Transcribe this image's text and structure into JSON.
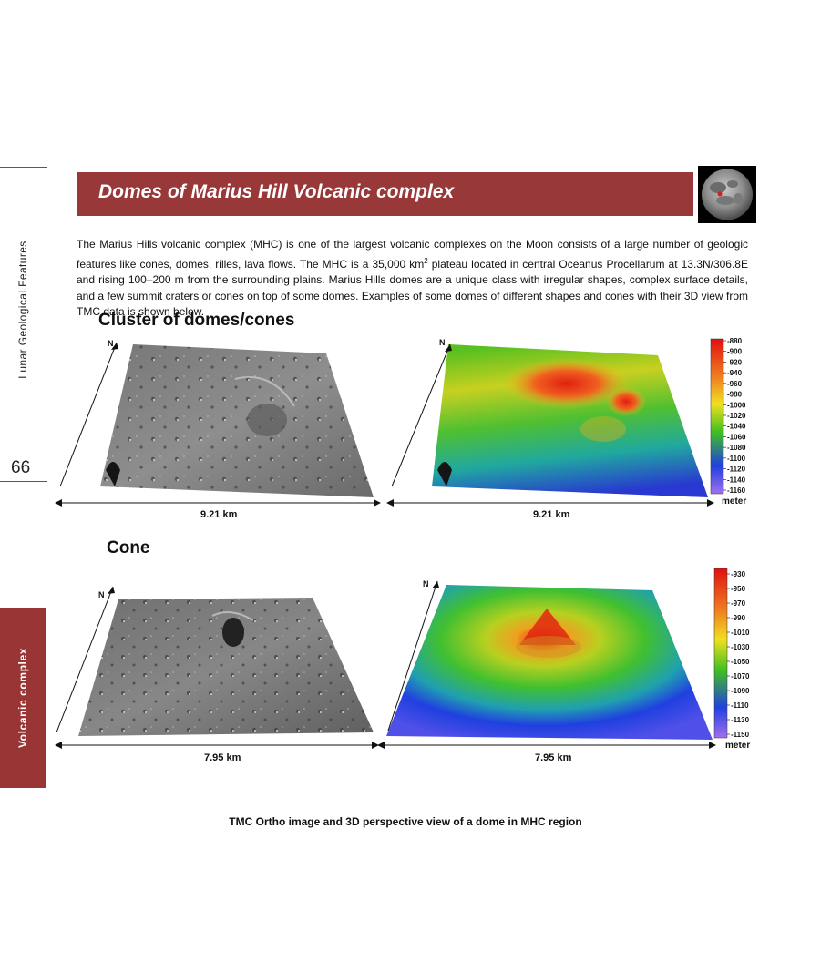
{
  "side": {
    "chapter": "Lunar Geological Features",
    "page_number": "66",
    "section_tab": "Volcanic complex"
  },
  "header": {
    "title": "Domes of Marius Hill Volcanic complex",
    "thumbnail_icon": "moon-globe-icon"
  },
  "intro": {
    "part1": "The Marius Hills volcanic complex (MHC) is one of the largest volcanic complexes on the Moon consists of a large number of geologic features like cones, domes, rilles, lava flows. The MHC is a 35,000 km",
    "sup": "2",
    "part2": " plateau located in central Oceanus Procellarum at 13.3N/306.8E and rising 100–200 m from the surrounding plains. Marius Hills domes are a unique class with irregular shapes, complex surface details, and a few summit craters or cones on top of some domes. Examples of some domes of different shapes and cones with their 3D view from TMC data is shown below."
  },
  "figures": {
    "cluster": {
      "title": "Cluster of domes/cones",
      "north": "N",
      "scale_left": "9.21 km",
      "scale_right": "9.21 km",
      "legend_unit": "meter",
      "legend_ticks": [
        "-880",
        "-900",
        "-920",
        "-940",
        "-960",
        "-980",
        "-1000",
        "-1020",
        "-1040",
        "-1060",
        "-1080",
        "-1100",
        "-1120",
        "-1140",
        "-1160"
      ]
    },
    "cone": {
      "title": "Cone",
      "north": "N",
      "scale_left": "7.95 km",
      "scale_right": "7.95 km",
      "legend_unit": "meter",
      "legend_ticks": [
        "-930",
        "-950",
        "-970",
        "-990",
        "-1010",
        "-1030",
        "-1050",
        "-1070",
        "-1090",
        "-1110",
        "-1130",
        "-1150"
      ]
    }
  },
  "caption": "TMC Ortho image and 3D perspective view of a dome in MHC region",
  "colors": {
    "accent": "#983838",
    "legend_gradient": [
      "#e01010",
      "#f08020",
      "#f0e020",
      "#40c020",
      "#2040e0",
      "#a070f0"
    ]
  }
}
